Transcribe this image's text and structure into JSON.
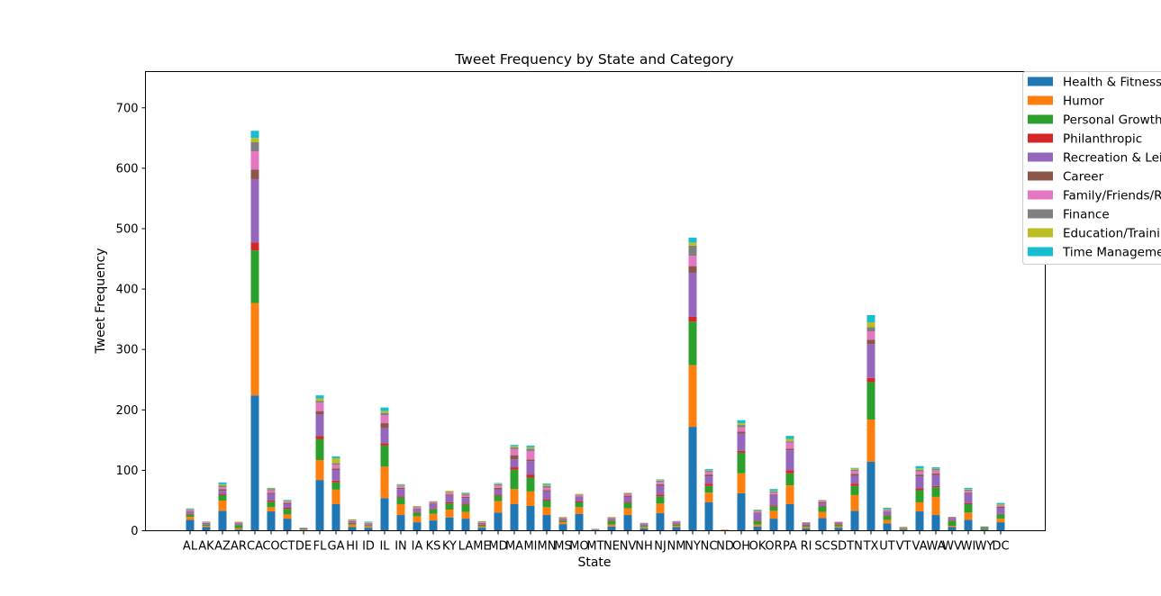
{
  "chart_data": {
    "type": "bar",
    "stacked": true,
    "title": "Tweet Frequency by State and Category",
    "xlabel": "State",
    "ylabel": "Tweet Frequency",
    "ylim": [
      0,
      760
    ],
    "yticks": [
      0,
      100,
      200,
      300,
      400,
      500,
      600,
      700
    ],
    "legend_position": "upper-right, outside plot",
    "grid": false,
    "categories": [
      "AL",
      "AK",
      "AZ",
      "AR",
      "CA",
      "CO",
      "CT",
      "DE",
      "FL",
      "GA",
      "HI",
      "ID",
      "IL",
      "IN",
      "IA",
      "KS",
      "KY",
      "LA",
      "ME",
      "MD",
      "MA",
      "MI",
      "MN",
      "MS",
      "MO",
      "MT",
      "NE",
      "NV",
      "NH",
      "NJ",
      "NM",
      "NY",
      "NC",
      "ND",
      "OH",
      "OK",
      "OR",
      "PA",
      "RI",
      "SC",
      "SD",
      "TN",
      "TX",
      "UT",
      "VT",
      "VA",
      "WA",
      "WV",
      "WI",
      "WY",
      "DC"
    ],
    "series": [
      {
        "name": "Health & Fitness",
        "color": "#1f77b4",
        "values": [
          18,
          6,
          33,
          2,
          224,
          32,
          20,
          1,
          84,
          44,
          6,
          5,
          54,
          26,
          14,
          17,
          22,
          20,
          5,
          30,
          44,
          41,
          26,
          11,
          28,
          1,
          7,
          26,
          4,
          29,
          6,
          172,
          47,
          1,
          62,
          7,
          20,
          44,
          4,
          21,
          5,
          33,
          114,
          12,
          2,
          32,
          26,
          6,
          18,
          1,
          14
        ]
      },
      {
        "name": "Humor",
        "color": "#ff7f0e",
        "values": [
          5,
          2,
          17,
          2,
          153,
          7,
          7,
          1,
          33,
          24,
          4,
          2,
          52,
          18,
          10,
          11,
          13,
          11,
          2,
          19,
          25,
          24,
          13,
          3,
          11,
          0,
          3,
          11,
          2,
          16,
          2,
          102,
          16,
          1,
          33,
          3,
          13,
          31,
          2,
          10,
          2,
          26,
          70,
          6,
          1,
          15,
          30,
          2,
          12,
          0,
          6
        ]
      },
      {
        "name": "Personal Growth",
        "color": "#2ca02c",
        "values": [
          4,
          2,
          9,
          5,
          87,
          9,
          9,
          1,
          35,
          12,
          2,
          1,
          35,
          11,
          6,
          8,
          10,
          12,
          2,
          9,
          32,
          23,
          11,
          2,
          8,
          0,
          6,
          9,
          2,
          12,
          2,
          72,
          11,
          0,
          34,
          6,
          7,
          20,
          2,
          9,
          3,
          15,
          62,
          7,
          1,
          20,
          16,
          8,
          14,
          3,
          7
        ]
      },
      {
        "name": "Philanthropic",
        "color": "#d62728",
        "values": [
          1,
          0,
          2,
          0,
          13,
          2,
          2,
          0,
          5,
          3,
          1,
          0,
          4,
          2,
          1,
          1,
          2,
          2,
          1,
          2,
          4,
          5,
          2,
          1,
          2,
          0,
          1,
          2,
          0,
          3,
          1,
          8,
          4,
          0,
          3,
          1,
          2,
          5,
          1,
          1,
          1,
          4,
          7,
          1,
          0,
          3,
          2,
          1,
          2,
          0,
          1
        ]
      },
      {
        "name": "Recreation & Leisure",
        "color": "#9467bd",
        "values": [
          3,
          2,
          5,
          2,
          105,
          11,
          6,
          1,
          35,
          17,
          2,
          2,
          25,
          12,
          5,
          8,
          11,
          9,
          2,
          8,
          13,
          22,
          13,
          2,
          7,
          1,
          2,
          8,
          2,
          14,
          2,
          73,
          12,
          0,
          29,
          12,
          16,
          33,
          2,
          4,
          2,
          13,
          56,
          5,
          1,
          20,
          18,
          3,
          15,
          1,
          10
        ]
      },
      {
        "name": "Career",
        "color": "#8c564b",
        "values": [
          1,
          1,
          3,
          1,
          16,
          2,
          2,
          0,
          6,
          3,
          1,
          1,
          8,
          2,
          1,
          1,
          2,
          2,
          1,
          3,
          7,
          3,
          2,
          1,
          1,
          0,
          1,
          2,
          1,
          3,
          1,
          11,
          3,
          0,
          3,
          1,
          2,
          3,
          1,
          2,
          1,
          3,
          7,
          1,
          1,
          3,
          3,
          1,
          2,
          1,
          2
        ]
      },
      {
        "name": "Family/Friends/Relationships",
        "color": "#e377c2",
        "values": [
          2,
          1,
          3,
          1,
          30,
          4,
          2,
          0,
          14,
          6,
          1,
          1,
          13,
          3,
          2,
          1,
          3,
          3,
          1,
          4,
          10,
          14,
          4,
          1,
          2,
          0,
          1,
          3,
          1,
          4,
          1,
          17,
          4,
          0,
          7,
          2,
          3,
          10,
          1,
          2,
          1,
          5,
          14,
          2,
          0,
          5,
          5,
          1,
          3,
          0,
          2
        ]
      },
      {
        "name": "Finance",
        "color": "#7f7f7f",
        "values": [
          1,
          1,
          3,
          1,
          15,
          2,
          1,
          1,
          3,
          3,
          1,
          1,
          4,
          1,
          1,
          1,
          1,
          2,
          1,
          2,
          3,
          4,
          3,
          1,
          1,
          1,
          1,
          1,
          1,
          2,
          1,
          17,
          2,
          0,
          4,
          1,
          2,
          2,
          1,
          1,
          0,
          2,
          7,
          1,
          0,
          3,
          2,
          1,
          2,
          1,
          1
        ]
      },
      {
        "name": "Education/Training",
        "color": "#bcbd22",
        "values": [
          1,
          0,
          2,
          1,
          7,
          1,
          1,
          0,
          4,
          8,
          1,
          1,
          3,
          1,
          1,
          1,
          2,
          1,
          1,
          1,
          2,
          2,
          2,
          1,
          1,
          0,
          1,
          1,
          0,
          1,
          0,
          5,
          1,
          0,
          3,
          1,
          1,
          4,
          0,
          1,
          0,
          2,
          8,
          1,
          0,
          2,
          1,
          0,
          1,
          0,
          1
        ]
      },
      {
        "name": "Time Management",
        "color": "#17becf",
        "values": [
          1,
          0,
          3,
          0,
          12,
          1,
          1,
          0,
          5,
          3,
          0,
          1,
          6,
          1,
          0,
          0,
          0,
          1,
          0,
          1,
          2,
          3,
          2,
          0,
          0,
          0,
          0,
          0,
          0,
          1,
          0,
          8,
          2,
          0,
          5,
          1,
          3,
          5,
          0,
          0,
          0,
          1,
          12,
          2,
          0,
          4,
          2,
          0,
          2,
          0,
          2
        ]
      }
    ]
  }
}
